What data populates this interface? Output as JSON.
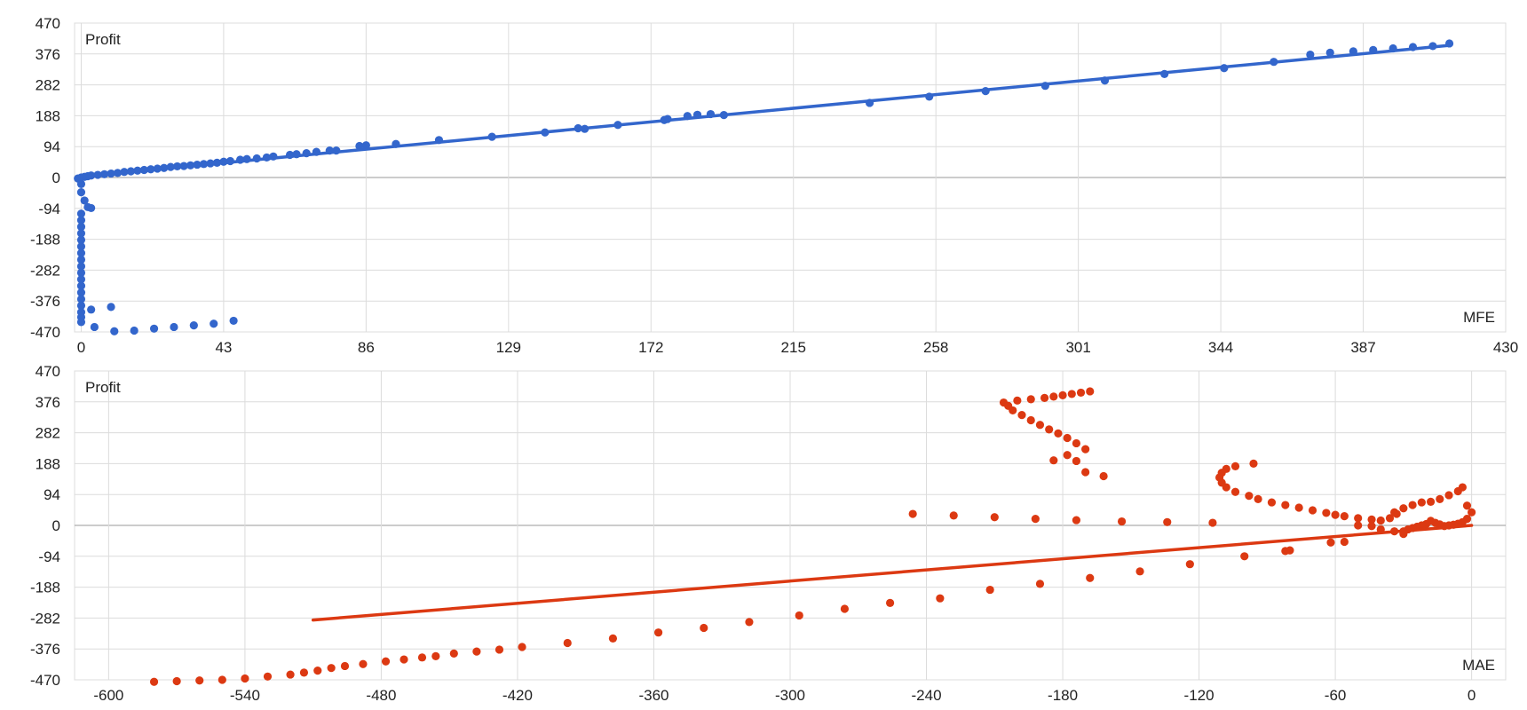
{
  "colors": {
    "grid": "#dcdcdc",
    "axis": "#9a9a9a",
    "text": "#222222"
  },
  "chart_data": [
    {
      "type": "scatter",
      "ylabel": "Profit",
      "xlabel": "MFE",
      "color": "#3366cc",
      "grid": true,
      "xlim": [
        -2,
        430
      ],
      "ylim": [
        -470,
        470
      ],
      "xticks": [
        "0",
        "43",
        "86",
        "129",
        "172",
        "215",
        "258",
        "301",
        "344",
        "387",
        "430"
      ],
      "xtick_values": [
        0,
        43,
        86,
        129,
        172,
        215,
        258,
        301,
        344,
        387,
        430
      ],
      "yticks": [
        "470",
        "376",
        "282",
        "188",
        "94",
        "0",
        "-94",
        "-188",
        "-282",
        "-376",
        "-470"
      ],
      "ytick_values": [
        470,
        376,
        282,
        188,
        94,
        0,
        -94,
        -188,
        -282,
        -376,
        -470
      ],
      "trendline": {
        "x": [
          0,
          413
        ],
        "y": [
          3,
          402
        ]
      },
      "points": [
        [
          413,
          408
        ],
        [
          408,
          400
        ],
        [
          402,
          397
        ],
        [
          396,
          393
        ],
        [
          390,
          388
        ],
        [
          384,
          384
        ],
        [
          377,
          380
        ],
        [
          371,
          374
        ],
        [
          360,
          352
        ],
        [
          345,
          333
        ],
        [
          327,
          315
        ],
        [
          309,
          295
        ],
        [
          291,
          279
        ],
        [
          273,
          263
        ],
        [
          256,
          246
        ],
        [
          238,
          227
        ],
        [
          194,
          190
        ],
        [
          190,
          193
        ],
        [
          186,
          191
        ],
        [
          183,
          187
        ],
        [
          177,
          178
        ],
        [
          176,
          175
        ],
        [
          162,
          160
        ],
        [
          152,
          148
        ],
        [
          150,
          150
        ],
        [
          140,
          137
        ],
        [
          124,
          124
        ],
        [
          108,
          114
        ],
        [
          95,
          102
        ],
        [
          86,
          98
        ],
        [
          84,
          96
        ],
        [
          77,
          82
        ],
        [
          75,
          82
        ],
        [
          71,
          78
        ],
        [
          68,
          74
        ],
        [
          65,
          71
        ],
        [
          63,
          69
        ],
        [
          58,
          64
        ],
        [
          56,
          61
        ],
        [
          53,
          58
        ],
        [
          50,
          56
        ],
        [
          48,
          54
        ],
        [
          45,
          50
        ],
        [
          43,
          48
        ],
        [
          41,
          45
        ],
        [
          39,
          43
        ],
        [
          37,
          41
        ],
        [
          35,
          39
        ],
        [
          33,
          37
        ],
        [
          31,
          35
        ],
        [
          29,
          34
        ],
        [
          27,
          32
        ],
        [
          25,
          29
        ],
        [
          23,
          27
        ],
        [
          21,
          25
        ],
        [
          19,
          23
        ],
        [
          17,
          21
        ],
        [
          15,
          19
        ],
        [
          13,
          17
        ],
        [
          11,
          14
        ],
        [
          9,
          12
        ],
        [
          7,
          10
        ],
        [
          5,
          8
        ],
        [
          3,
          6
        ],
        [
          2,
          4
        ],
        [
          1,
          2
        ],
        [
          0,
          0
        ],
        [
          -1,
          -3
        ],
        [
          0,
          -20
        ],
        [
          0,
          -45
        ],
        [
          1,
          -70
        ],
        [
          2,
          -90
        ],
        [
          3,
          -93
        ],
        [
          0,
          -110
        ],
        [
          0,
          -130
        ],
        [
          0,
          -150
        ],
        [
          0,
          -170
        ],
        [
          0,
          -190
        ],
        [
          0,
          -210
        ],
        [
          0,
          -230
        ],
        [
          0,
          -250
        ],
        [
          0,
          -270
        ],
        [
          0,
          -290
        ],
        [
          0,
          -310
        ],
        [
          0,
          -330
        ],
        [
          0,
          -350
        ],
        [
          0,
          -370
        ],
        [
          0,
          -390
        ],
        [
          0,
          -410
        ],
        [
          0,
          -425
        ],
        [
          0,
          -440
        ],
        [
          3,
          -402
        ],
        [
          9,
          -394
        ],
        [
          4,
          -455
        ],
        [
          10,
          -468
        ],
        [
          16,
          -466
        ],
        [
          22,
          -460
        ],
        [
          28,
          -455
        ],
        [
          34,
          -450
        ],
        [
          40,
          -445
        ],
        [
          46,
          -436
        ]
      ]
    },
    {
      "type": "scatter",
      "ylabel": "Profit",
      "xlabel": "MAE",
      "color": "#dc3912",
      "grid": true,
      "xlim": [
        -615,
        15
      ],
      "ylim": [
        -470,
        470
      ],
      "xticks": [
        "-600",
        "-540",
        "-480",
        "-420",
        "-360",
        "-300",
        "-240",
        "-180",
        "-120",
        "-60",
        "0"
      ],
      "xtick_values": [
        -600,
        -540,
        -480,
        -420,
        -360,
        -300,
        -240,
        -180,
        -120,
        -60,
        0
      ],
      "yticks": [
        "470",
        "376",
        "282",
        "188",
        "94",
        "0",
        "-94",
        "-188",
        "-282",
        "-376",
        "-470"
      ],
      "ytick_values": [
        470,
        376,
        282,
        188,
        94,
        0,
        -94,
        -188,
        -282,
        -376,
        -470
      ],
      "trendline": {
        "x": [
          -510,
          0
        ],
        "y": [
          -288,
          0
        ]
      },
      "points": [
        [
          -168,
          408
        ],
        [
          -172,
          404
        ],
        [
          -176,
          400
        ],
        [
          -180,
          396
        ],
        [
          -184,
          392
        ],
        [
          -188,
          388
        ],
        [
          -194,
          384
        ],
        [
          -200,
          380
        ],
        [
          -206,
          374
        ],
        [
          -204,
          364
        ],
        [
          -202,
          350
        ],
        [
          -198,
          336
        ],
        [
          -194,
          320
        ],
        [
          -190,
          306
        ],
        [
          -186,
          292
        ],
        [
          -182,
          280
        ],
        [
          -178,
          266
        ],
        [
          -174,
          250
        ],
        [
          -170,
          232
        ],
        [
          -178,
          214
        ],
        [
          -184,
          198
        ],
        [
          -174,
          196
        ],
        [
          -162,
          150
        ],
        [
          -170,
          162
        ],
        [
          -246,
          35
        ],
        [
          -228,
          30
        ],
        [
          -210,
          25
        ],
        [
          -192,
          20
        ],
        [
          -174,
          16
        ],
        [
          -154,
          12
        ],
        [
          -134,
          10
        ],
        [
          -114,
          8
        ],
        [
          -96,
          188
        ],
        [
          -104,
          180
        ],
        [
          -108,
          172
        ],
        [
          -110,
          160
        ],
        [
          -111,
          146
        ],
        [
          -110,
          130
        ],
        [
          -108,
          116
        ],
        [
          -104,
          102
        ],
        [
          -98,
          90
        ],
        [
          -94,
          80
        ],
        [
          -88,
          70
        ],
        [
          -82,
          62
        ],
        [
          -76,
          54
        ],
        [
          -70,
          46
        ],
        [
          -64,
          38
        ],
        [
          -60,
          32
        ],
        [
          -56,
          28
        ],
        [
          -50,
          22
        ],
        [
          -44,
          18
        ],
        [
          -40,
          15
        ],
        [
          -36,
          22
        ],
        [
          -33,
          35
        ],
        [
          -30,
          52
        ],
        [
          -26,
          62
        ],
        [
          -22,
          70
        ],
        [
          -18,
          72
        ],
        [
          -14,
          80
        ],
        [
          -10,
          92
        ],
        [
          -6,
          104
        ],
        [
          -4,
          116
        ],
        [
          -2,
          60
        ],
        [
          0,
          40
        ],
        [
          -2,
          20
        ],
        [
          -4,
          10
        ],
        [
          -6,
          5
        ],
        [
          -8,
          2
        ],
        [
          -10,
          0
        ],
        [
          -12,
          -2
        ],
        [
          -14,
          3
        ],
        [
          -16,
          8
        ],
        [
          -18,
          14
        ],
        [
          -20,
          4
        ],
        [
          -22,
          0
        ],
        [
          -24,
          -4
        ],
        [
          -26,
          -8
        ],
        [
          -28,
          -12
        ],
        [
          -30,
          -18
        ],
        [
          -34,
          40
        ],
        [
          -30,
          -26
        ],
        [
          -34,
          -18
        ],
        [
          -40,
          -12
        ],
        [
          -44,
          -2
        ],
        [
          -50,
          0
        ],
        [
          -56,
          -50
        ],
        [
          -62,
          -52
        ],
        [
          -80,
          -76
        ],
        [
          -82,
          -78
        ],
        [
          -100,
          -94
        ],
        [
          -124,
          -118
        ],
        [
          -146,
          -140
        ],
        [
          -168,
          -160
        ],
        [
          -190,
          -178
        ],
        [
          -212,
          -196
        ],
        [
          -234,
          -222
        ],
        [
          -256,
          -236
        ],
        [
          -276,
          -254
        ],
        [
          -296,
          -274
        ],
        [
          -318,
          -294
        ],
        [
          -338,
          -312
        ],
        [
          -358,
          -326
        ],
        [
          -378,
          -344
        ],
        [
          -398,
          -358
        ],
        [
          -418,
          -370
        ],
        [
          -428,
          -378
        ],
        [
          -438,
          -384
        ],
        [
          -448,
          -390
        ],
        [
          -456,
          -398
        ],
        [
          -462,
          -402
        ],
        [
          -470,
          -408
        ],
        [
          -478,
          -414
        ],
        [
          -488,
          -422
        ],
        [
          -496,
          -428
        ],
        [
          -502,
          -434
        ],
        [
          -508,
          -442
        ],
        [
          -514,
          -448
        ],
        [
          -520,
          -454
        ],
        [
          -530,
          -460
        ],
        [
          -540,
          -466
        ],
        [
          -550,
          -470
        ],
        [
          -560,
          -472
        ],
        [
          -570,
          -474
        ],
        [
          -580,
          -476
        ]
      ]
    }
  ]
}
